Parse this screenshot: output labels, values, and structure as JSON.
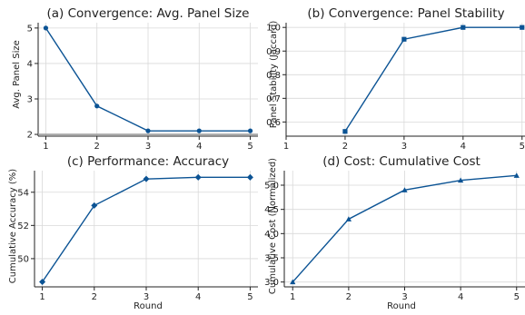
{
  "chart_data": [
    {
      "type": "line",
      "title": "(a) Convergence: Avg. Panel Size",
      "xlabel": "",
      "ylabel": "Avg. Panel Size",
      "x": [
        1,
        2,
        3,
        4,
        5
      ],
      "series": [
        {
          "values": [
            5.0,
            2.8,
            2.1,
            2.1,
            2.1
          ],
          "marker": "circle"
        }
      ],
      "xlim": [
        0.85,
        5.15
      ],
      "ylim": [
        1.95,
        5.15
      ],
      "xticks": [
        1,
        2,
        3,
        4,
        5
      ],
      "yticks": [
        2,
        3,
        4,
        5
      ],
      "grid": true,
      "color": "#0b5394",
      "hline_at": 2.0
    },
    {
      "type": "line",
      "title": "(b) Convergence: Panel Stability",
      "xlabel": "",
      "ylabel": "Panel Stability (Jaccard)",
      "x": [
        2,
        3,
        4,
        5
      ],
      "series": [
        {
          "values": [
            0.56,
            0.95,
            1.0,
            1.0
          ],
          "marker": "square"
        }
      ],
      "xlim": [
        1.0,
        5.05
      ],
      "ylim": [
        0.54,
        1.02
      ],
      "xticks": [
        1,
        2,
        3,
        4,
        5
      ],
      "yticks": [
        0.6,
        0.7,
        0.8,
        0.9,
        1.0
      ],
      "ytick_labels": [
        "0.6",
        "0.7",
        "0.8",
        "0.9",
        "1.0"
      ],
      "grid": true,
      "color": "#0b5394"
    },
    {
      "type": "line",
      "title": "(c) Performance: Accuracy",
      "xlabel": "Round",
      "ylabel": "Cumulative Accuracy (%)",
      "x": [
        1,
        2,
        3,
        4,
        5
      ],
      "series": [
        {
          "values": [
            48.6,
            53.2,
            54.8,
            54.9,
            54.9
          ],
          "marker": "diamond"
        }
      ],
      "xlim": [
        0.85,
        5.15
      ],
      "ylim": [
        48.3,
        55.3
      ],
      "xticks": [
        1,
        2,
        3,
        4,
        5
      ],
      "yticks": [
        50,
        52,
        54
      ],
      "grid": true,
      "color": "#0b5394"
    },
    {
      "type": "line",
      "title": "(d) Cost: Cumulative Cost",
      "xlabel": "Round",
      "ylabel": "Cumulative Cost (Normalized)",
      "x": [
        1,
        2,
        3,
        4,
        5
      ],
      "series": [
        {
          "values": [
            3.0,
            4.3,
            4.9,
            5.1,
            5.2
          ],
          "marker": "triangle"
        }
      ],
      "xlim": [
        0.85,
        5.15
      ],
      "ylim": [
        2.9,
        5.3
      ],
      "xticks": [
        1,
        2,
        3,
        4,
        5
      ],
      "yticks": [
        3.0,
        3.5,
        4.0,
        4.5,
        5.0
      ],
      "ytick_labels": [
        "3.0",
        "3.5",
        "4.0",
        "4.5",
        "5.0"
      ],
      "grid": true,
      "color": "#0b5394"
    }
  ]
}
